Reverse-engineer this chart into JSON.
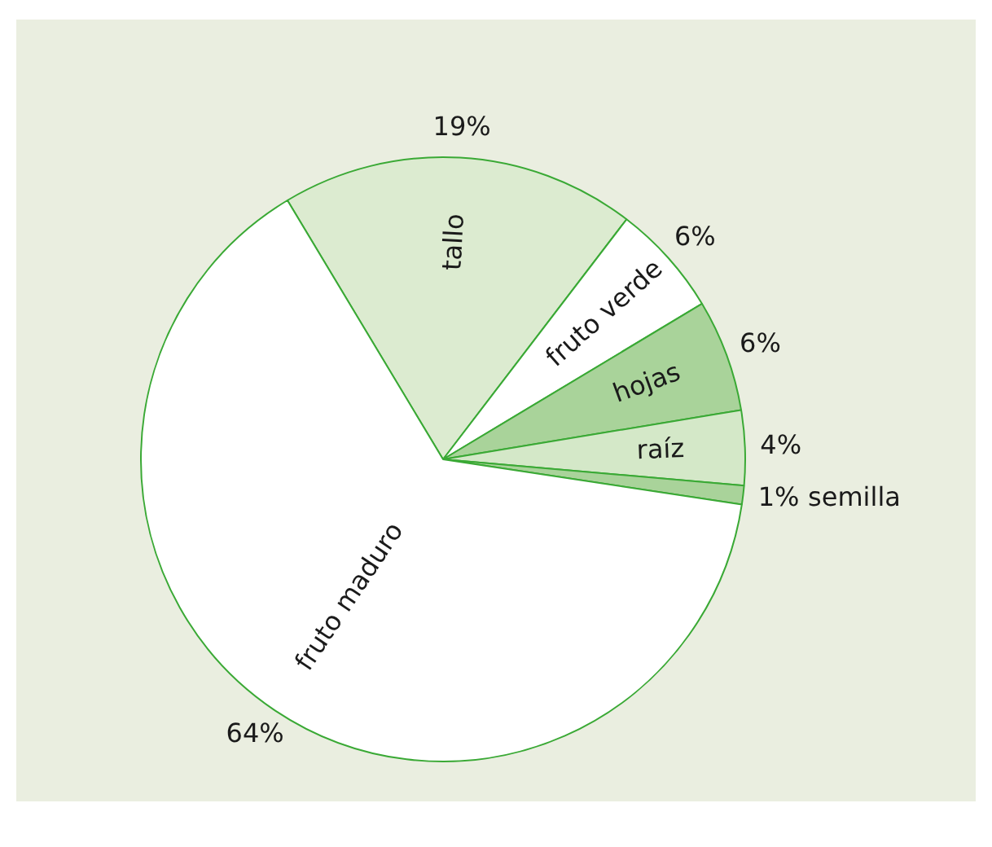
{
  "chart_data": {
    "type": "pie",
    "categories": [
      "tallo",
      "fruto verde",
      "hojas",
      "raíz",
      "semilla",
      "fruto maduro"
    ],
    "values": [
      19,
      6,
      6,
      4,
      1,
      64
    ],
    "colors": [
      "#dcebd0",
      "#ffffff",
      "#a9d39a",
      "#d4e8c8",
      "#a9d39a",
      "#ffffff"
    ],
    "value_labels": [
      "19%",
      "6%",
      "6%",
      "4%",
      "1%",
      "64%"
    ],
    "legend": false
  }
}
